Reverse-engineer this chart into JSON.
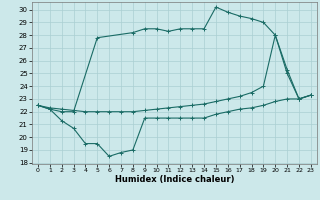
{
  "xlabel": "Humidex (Indice chaleur)",
  "bg_color": "#cce8ea",
  "grid_color": "#aacfd2",
  "line_color": "#1a6b65",
  "xlim": [
    -0.5,
    23.5
  ],
  "ylim": [
    17.9,
    30.6
  ],
  "yticks": [
    18,
    19,
    20,
    21,
    22,
    23,
    24,
    25,
    26,
    27,
    28,
    29,
    30
  ],
  "xticks": [
    0,
    1,
    2,
    3,
    4,
    5,
    6,
    7,
    8,
    9,
    10,
    11,
    12,
    13,
    14,
    15,
    16,
    17,
    18,
    19,
    20,
    21,
    22,
    23
  ],
  "top_x": [
    0,
    1,
    2,
    3,
    5,
    8,
    9,
    10,
    11,
    12,
    13,
    14,
    15,
    16,
    17,
    18,
    19,
    20,
    21,
    22,
    23
  ],
  "top_y": [
    22.5,
    22.2,
    22.0,
    22.0,
    27.8,
    28.2,
    28.5,
    28.5,
    28.3,
    28.5,
    28.5,
    28.5,
    30.2,
    29.8,
    29.5,
    29.3,
    29.0,
    28.0,
    25.3,
    23.0,
    23.3
  ],
  "mid_x": [
    0,
    1,
    2,
    3,
    4,
    5,
    6,
    7,
    8,
    9,
    10,
    11,
    12,
    13,
    14,
    15,
    16,
    17,
    18,
    19,
    20,
    21,
    22,
    23
  ],
  "mid_y": [
    22.5,
    22.3,
    22.2,
    22.1,
    22.0,
    22.0,
    22.0,
    22.0,
    22.0,
    22.1,
    22.2,
    22.3,
    22.4,
    22.5,
    22.6,
    22.8,
    23.0,
    23.2,
    23.5,
    24.0,
    28.0,
    25.0,
    23.0,
    23.3
  ],
  "bot_x": [
    0,
    1,
    2,
    3,
    4,
    5,
    6,
    7,
    8,
    9,
    10,
    11,
    12,
    13,
    14,
    15,
    16,
    17,
    18,
    19,
    20,
    21,
    22,
    23
  ],
  "bot_y": [
    22.5,
    22.2,
    21.3,
    20.7,
    19.5,
    19.5,
    18.5,
    18.8,
    19.0,
    21.5,
    21.5,
    21.5,
    21.5,
    21.5,
    21.5,
    21.8,
    22.0,
    22.2,
    22.3,
    22.5,
    22.8,
    23.0,
    23.0,
    23.3
  ]
}
